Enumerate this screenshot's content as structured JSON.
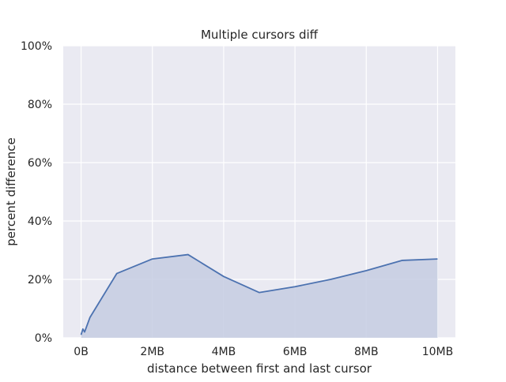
{
  "chart_data": {
    "type": "area",
    "title": "Multiple cursors diff",
    "xlabel": "distance between first and last cursor",
    "ylabel": "percent difference",
    "x_unit": "MB",
    "xlim": [
      -0.5,
      10.5
    ],
    "ylim": [
      0,
      100
    ],
    "x_ticks": [
      {
        "value": 0,
        "label": "0B"
      },
      {
        "value": 2,
        "label": "2MB"
      },
      {
        "value": 4,
        "label": "4MB"
      },
      {
        "value": 6,
        "label": "6MB"
      },
      {
        "value": 8,
        "label": "8MB"
      },
      {
        "value": 10,
        "label": "10MB"
      }
    ],
    "y_ticks": [
      {
        "value": 0,
        "label": "0%"
      },
      {
        "value": 20,
        "label": "20%"
      },
      {
        "value": 40,
        "label": "40%"
      },
      {
        "value": 60,
        "label": "60%"
      },
      {
        "value": 80,
        "label": "80%"
      },
      {
        "value": 100,
        "label": "100%"
      }
    ],
    "grid": true,
    "series": [
      {
        "x": [
          0,
          0.05,
          0.1,
          0.25,
          0.5,
          1,
          2,
          3,
          4,
          5,
          6,
          7,
          8,
          9,
          10
        ],
        "values": [
          1,
          3,
          2,
          7,
          12,
          22,
          27,
          28.5,
          21,
          15.5,
          17.5,
          20,
          23,
          26.5,
          27
        ]
      }
    ],
    "colors": {
      "background": "#eaeaf2",
      "grid": "#ffffff",
      "line": "#4c72b0",
      "fill": "#c5cce2"
    }
  }
}
